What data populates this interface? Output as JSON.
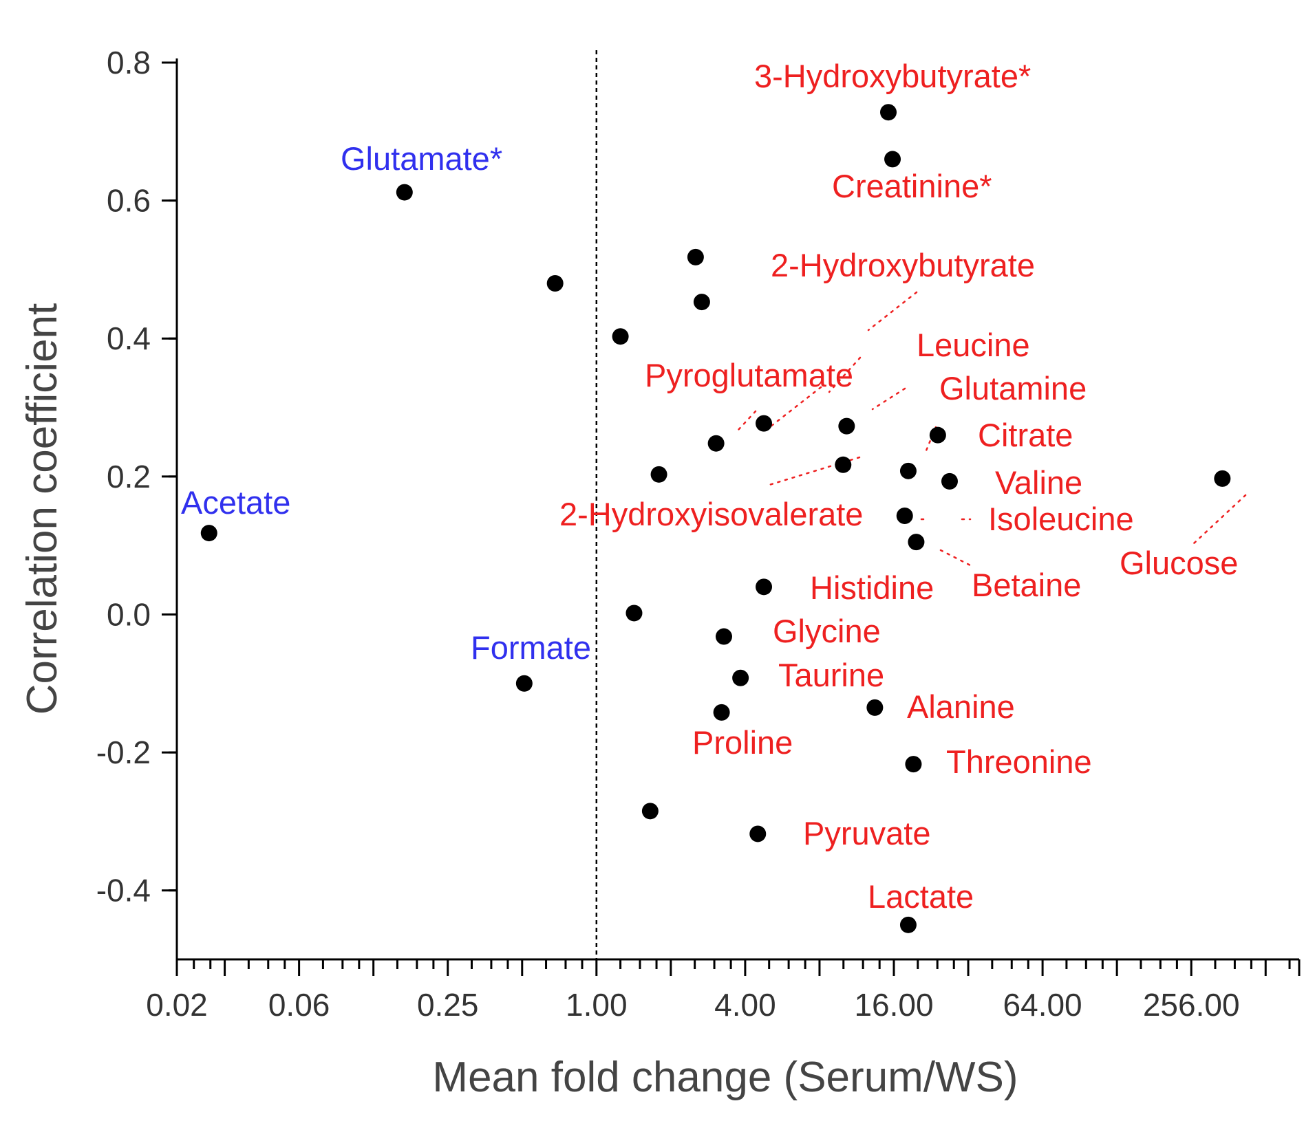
{
  "chart_data": {
    "type": "scatter",
    "title": "",
    "xlabel": "Mean fold change (Serum/WS)",
    "ylabel": "Correlation coefficient",
    "x_scale": "log2",
    "xlim": [
      0.02,
      700
    ],
    "ylim": [
      -0.5,
      0.8
    ],
    "x_tick_labels": [
      {
        "value": 0.02,
        "label": "0.02"
      },
      {
        "value": 0.0625,
        "label": "0.06"
      },
      {
        "value": 0.25,
        "label": "0.25"
      },
      {
        "value": 1,
        "label": "1.00"
      },
      {
        "value": 4,
        "label": "4.00"
      },
      {
        "value": 16,
        "label": "16.00"
      },
      {
        "value": 64,
        "label": "64.00"
      },
      {
        "value": 256,
        "label": "256.00"
      }
    ],
    "y_ticks": [
      -0.4,
      -0.2,
      0.0,
      0.2,
      0.4,
      0.6,
      0.8
    ],
    "y_tick_labels": [
      "-0.4",
      "-0.2",
      "0.0",
      "0.2",
      "0.4",
      "0.6",
      "0.8"
    ],
    "reference_line_x": 1,
    "colors": {
      "up": "#ee2020",
      "down": "#3030ee",
      "point": "#000000"
    },
    "points": [
      {
        "x": 0.027,
        "y": 0.118
      },
      {
        "x": 0.167,
        "y": 0.612
      },
      {
        "x": 0.51,
        "y": -0.1
      },
      {
        "x": 0.68,
        "y": 0.48
      },
      {
        "x": 1.25,
        "y": 0.403
      },
      {
        "x": 1.42,
        "y": 0.002
      },
      {
        "x": 1.65,
        "y": -0.285
      },
      {
        "x": 1.79,
        "y": 0.203
      },
      {
        "x": 2.52,
        "y": 0.518
      },
      {
        "x": 2.67,
        "y": 0.453
      },
      {
        "x": 3.05,
        "y": 0.248
      },
      {
        "x": 3.21,
        "y": -0.142
      },
      {
        "x": 3.28,
        "y": -0.032
      },
      {
        "x": 3.83,
        "y": -0.092
      },
      {
        "x": 4.5,
        "y": -0.318
      },
      {
        "x": 4.76,
        "y": 0.277
      },
      {
        "x": 4.76,
        "y": 0.04
      },
      {
        "x": 9.97,
        "y": 0.217
      },
      {
        "x": 10.3,
        "y": 0.273
      },
      {
        "x": 13.4,
        "y": -0.135
      },
      {
        "x": 15.2,
        "y": 0.728
      },
      {
        "x": 15.8,
        "y": 0.66
      },
      {
        "x": 17.7,
        "y": 0.143
      },
      {
        "x": 18.3,
        "y": 0.208
      },
      {
        "x": 18.3,
        "y": -0.45
      },
      {
        "x": 19.2,
        "y": -0.217
      },
      {
        "x": 19.7,
        "y": 0.105
      },
      {
        "x": 24.1,
        "y": 0.26
      },
      {
        "x": 26.9,
        "y": 0.193
      },
      {
        "x": 342,
        "y": 0.197
      }
    ],
    "labels": [
      {
        "text": "3-Hydroxybutyrate*",
        "group": "up"
      },
      {
        "text": "Creatinine*",
        "group": "up"
      },
      {
        "text": "2-Hydroxybutyrate",
        "group": "up"
      },
      {
        "text": "Leucine",
        "group": "up"
      },
      {
        "text": "Pyroglutamate",
        "group": "up"
      },
      {
        "text": "Glutamine",
        "group": "up"
      },
      {
        "text": "Citrate",
        "group": "up"
      },
      {
        "text": "Valine",
        "group": "up"
      },
      {
        "text": "2-Hydroxyisovalerate",
        "group": "up"
      },
      {
        "text": "Isoleucine",
        "group": "up"
      },
      {
        "text": "Glucose",
        "group": "up"
      },
      {
        "text": "Histidine",
        "group": "up"
      },
      {
        "text": "Betaine",
        "group": "up"
      },
      {
        "text": "Glycine",
        "group": "up"
      },
      {
        "text": "Taurine",
        "group": "up"
      },
      {
        "text": "Alanine",
        "group": "up"
      },
      {
        "text": "Proline",
        "group": "up"
      },
      {
        "text": "Threonine",
        "group": "up"
      },
      {
        "text": "Pyruvate",
        "group": "up"
      },
      {
        "text": "Lactate",
        "group": "up"
      },
      {
        "text": "Glutamate*",
        "group": "down"
      },
      {
        "text": "Acetate",
        "group": "down"
      },
      {
        "text": "Formate",
        "group": "down"
      }
    ]
  }
}
